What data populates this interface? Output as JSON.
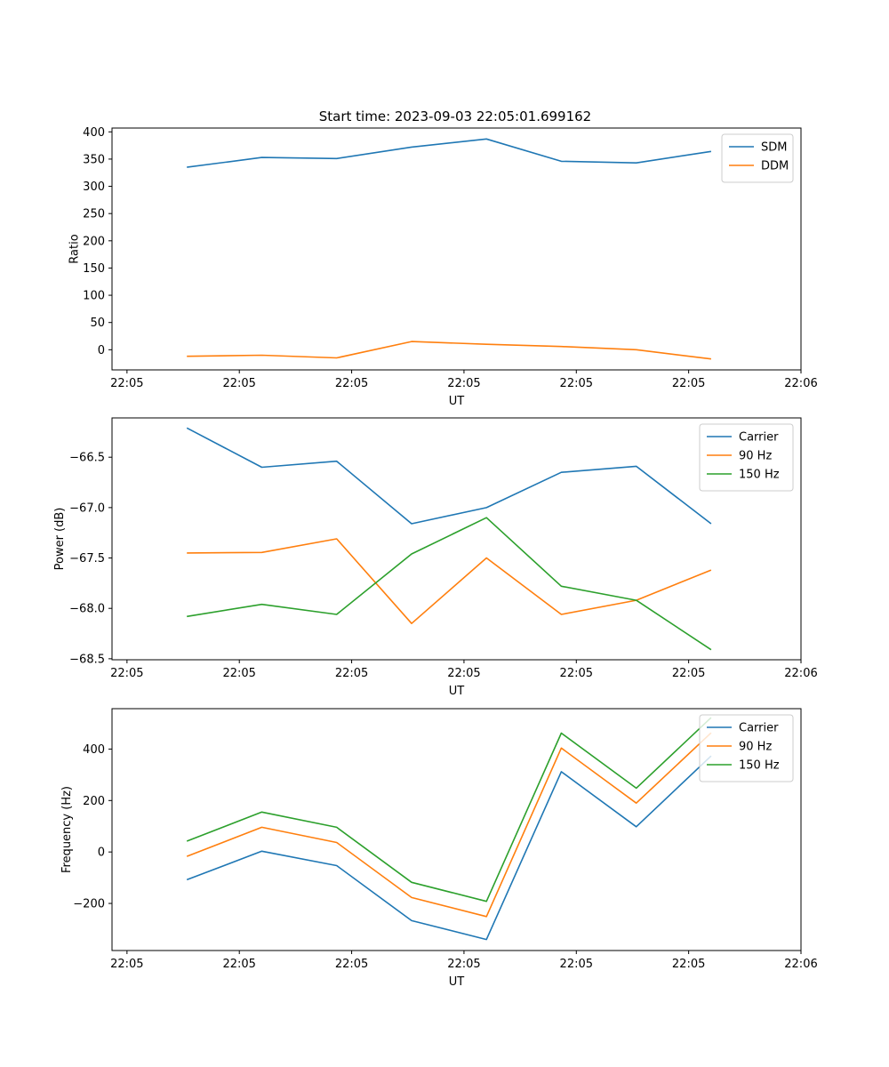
{
  "figure_title": "Start time: 2023-09-03 22:05:01.699162",
  "colors": {
    "blue": "#1f77b4",
    "orange": "#ff7f0e",
    "green": "#2ca02c"
  },
  "chart_data": [
    {
      "type": "line",
      "title": "Start time: 2023-09-03 22:05:01.699162",
      "xlabel": "UT",
      "ylabel": "Ratio",
      "xlim": [
        0,
        9.2
      ],
      "ylim": [
        -37,
        407
      ],
      "x": [
        1,
        2,
        3,
        4,
        5,
        6,
        7,
        8
      ],
      "xticks": [
        0.2,
        1.7,
        3.2,
        4.7,
        6.2,
        7.7,
        9.2
      ],
      "xtick_labels": [
        "22:05",
        "22:05",
        "22:05",
        "22:05",
        "22:05",
        "22:05",
        "22:06"
      ],
      "yticks": [
        0,
        50,
        100,
        150,
        200,
        250,
        300,
        350,
        400
      ],
      "ytick_labels": [
        "0",
        "50",
        "100",
        "150",
        "200",
        "250",
        "300",
        "350",
        "400"
      ],
      "legend_position": "top-right",
      "series": [
        {
          "name": "SDM",
          "color": "#1f77b4",
          "values": [
            335,
            353,
            351,
            372,
            387,
            346,
            343,
            364
          ]
        },
        {
          "name": "DDM",
          "color": "#ff7f0e",
          "values": [
            -12,
            -10,
            -15,
            15,
            10,
            6,
            0,
            -17
          ]
        }
      ]
    },
    {
      "type": "line",
      "xlabel": "UT",
      "ylabel": "Power (dB)",
      "xlim": [
        0,
        9.2
      ],
      "ylim": [
        -68.51,
        -66.11
      ],
      "x": [
        1,
        2,
        3,
        4,
        5,
        6,
        7,
        8
      ],
      "xticks": [
        0.2,
        1.7,
        3.2,
        4.7,
        6.2,
        7.7,
        9.2
      ],
      "xtick_labels": [
        "22:05",
        "22:05",
        "22:05",
        "22:05",
        "22:05",
        "22:05",
        "22:06"
      ],
      "yticks": [
        -68.5,
        -68.0,
        -67.5,
        -67.0,
        -66.5
      ],
      "ytick_labels": [
        "−68.5",
        "−68.0",
        "−67.5",
        "−67.0",
        "−66.5"
      ],
      "legend_position": "top-right",
      "series": [
        {
          "name": "Carrier",
          "color": "#1f77b4",
          "values": [
            -66.21,
            -66.6,
            -66.54,
            -67.16,
            -67.0,
            -66.65,
            -66.59,
            -67.16
          ]
        },
        {
          "name": "90 Hz",
          "color": "#ff7f0e",
          "values": [
            -67.45,
            -67.445,
            -67.31,
            -68.15,
            -67.5,
            -68.06,
            -67.92,
            -67.62
          ]
        },
        {
          "name": "150 Hz",
          "color": "#2ca02c",
          "values": [
            -68.08,
            -67.96,
            -68.06,
            -67.46,
            -67.1,
            -67.78,
            -67.92,
            -68.41
          ]
        }
      ]
    },
    {
      "type": "line",
      "xlabel": "UT",
      "ylabel": "Frequency (Hz)",
      "xlim": [
        0,
        9.2
      ],
      "ylim": [
        -383,
        557
      ],
      "x": [
        1,
        2,
        3,
        4,
        5,
        6,
        7,
        8
      ],
      "xticks": [
        0.2,
        1.7,
        3.2,
        4.7,
        6.2,
        7.7,
        9.2
      ],
      "xtick_labels": [
        "22:05",
        "22:05",
        "22:05",
        "22:05",
        "22:05",
        "22:05",
        "22:06"
      ],
      "yticks": [
        -200,
        0,
        200,
        400
      ],
      "ytick_labels": [
        "−200",
        "0",
        "200",
        "400"
      ],
      "legend_position": "top-right",
      "series": [
        {
          "name": "Carrier",
          "color": "#1f77b4",
          "values": [
            -108,
            3,
            -53,
            -267,
            -340,
            312,
            98,
            373
          ]
        },
        {
          "name": "90 Hz",
          "color": "#ff7f0e",
          "values": [
            -17,
            96,
            37,
            -177,
            -251,
            404,
            190,
            463
          ]
        },
        {
          "name": "150 Hz",
          "color": "#2ca02c",
          "values": [
            42,
            155,
            96,
            -118,
            -192,
            462,
            248,
            522
          ]
        }
      ]
    }
  ]
}
